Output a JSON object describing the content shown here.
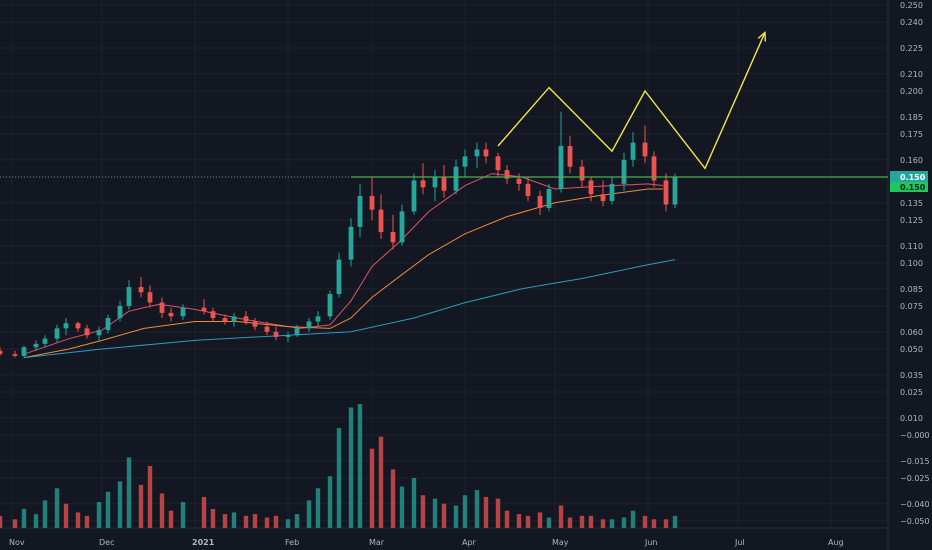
{
  "chart_data": {
    "type": "candlestick",
    "y_axis": {
      "ticks": [
        0.25,
        0.24,
        0.225,
        0.21,
        0.2,
        0.185,
        0.175,
        0.16,
        0.15,
        0.135,
        0.125,
        0.11,
        0.1,
        0.085,
        0.075,
        0.06,
        0.05,
        0.035,
        0.025,
        0.01,
        -0.0,
        -0.015,
        -0.025,
        -0.04,
        -0.05
      ],
      "tick_labels": [
        "0.250",
        "0.240",
        "0.225",
        "0.210",
        "0.200",
        "0.185",
        "0.175",
        "0.160",
        "0.150",
        "0.135",
        "0.125",
        "0.110",
        "0.100",
        "0.085",
        "0.075",
        "0.060",
        "0.050",
        "0.035",
        "0.025",
        "0.010",
        "−0.000",
        "−0.015",
        "−0.025",
        "−0.040",
        "−0.050"
      ]
    },
    "x_axis": {
      "labels": [
        {
          "text": "Nov",
          "date": "2020-11-01",
          "bold": false
        },
        {
          "text": "Dec",
          "date": "2020-12-01",
          "bold": false
        },
        {
          "text": "2021",
          "date": "2021-01-01",
          "bold": true
        },
        {
          "text": "Feb",
          "date": "2021-02-01",
          "bold": false
        },
        {
          "text": "Mar",
          "date": "2021-03-01",
          "bold": false
        },
        {
          "text": "Apr",
          "date": "2021-04-01",
          "bold": false
        },
        {
          "text": "May",
          "date": "2021-05-01",
          "bold": false
        },
        {
          "text": "Jun",
          "date": "2021-06-01",
          "bold": false
        },
        {
          "text": "Jul",
          "date": "2021-07-01",
          "bold": false
        },
        {
          "text": "Aug",
          "date": "2021-08-01",
          "bold": false
        }
      ],
      "range": [
        "2020-10-28",
        "2021-08-20"
      ]
    },
    "last_price": {
      "value": 0.15,
      "label": "0.150",
      "label_secondary": "0.150"
    },
    "support_level": {
      "value": 0.15,
      "from": "2021-02-22",
      "to": "2021-08-20"
    },
    "moving_averages": [
      {
        "color": "#e4516b",
        "points": [
          [
            "2020-11-05",
            0.047
          ],
          [
            "2020-11-20",
            0.056
          ],
          [
            "2020-12-01",
            0.061
          ],
          [
            "2020-12-10",
            0.072
          ],
          [
            "2020-12-20",
            0.076
          ],
          [
            "2021-01-01",
            0.073
          ],
          [
            "2021-01-15",
            0.068
          ],
          [
            "2021-01-25",
            0.065
          ],
          [
            "2021-02-05",
            0.062
          ],
          [
            "2021-02-15",
            0.064
          ],
          [
            "2021-02-22",
            0.078
          ],
          [
            "2021-03-01",
            0.098
          ],
          [
            "2021-03-10",
            0.112
          ],
          [
            "2021-03-20",
            0.13
          ],
          [
            "2021-04-01",
            0.145
          ],
          [
            "2021-04-10",
            0.152
          ],
          [
            "2021-04-20",
            0.15
          ],
          [
            "2021-05-01",
            0.143
          ],
          [
            "2021-05-10",
            0.144
          ],
          [
            "2021-05-20",
            0.145
          ],
          [
            "2021-06-01",
            0.146
          ],
          [
            "2021-06-06",
            0.145
          ]
        ]
      },
      {
        "color": "#f0893a",
        "points": [
          [
            "2020-11-05",
            0.045
          ],
          [
            "2020-11-20",
            0.05
          ],
          [
            "2020-12-01",
            0.055
          ],
          [
            "2020-12-15",
            0.062
          ],
          [
            "2021-01-01",
            0.066
          ],
          [
            "2021-01-15",
            0.066
          ],
          [
            "2021-02-01",
            0.063
          ],
          [
            "2021-02-15",
            0.062
          ],
          [
            "2021-02-22",
            0.068
          ],
          [
            "2021-03-01",
            0.08
          ],
          [
            "2021-03-10",
            0.092
          ],
          [
            "2021-03-20",
            0.105
          ],
          [
            "2021-04-01",
            0.117
          ],
          [
            "2021-04-15",
            0.127
          ],
          [
            "2021-05-01",
            0.135
          ],
          [
            "2021-05-15",
            0.139
          ],
          [
            "2021-06-01",
            0.143
          ],
          [
            "2021-06-06",
            0.143
          ]
        ]
      },
      {
        "color": "#2d9ac2",
        "points": [
          [
            "2020-11-05",
            0.045
          ],
          [
            "2020-12-01",
            0.05
          ],
          [
            "2021-01-01",
            0.055
          ],
          [
            "2021-02-01",
            0.058
          ],
          [
            "2021-02-22",
            0.06
          ],
          [
            "2021-03-15",
            0.068
          ],
          [
            "2021-04-01",
            0.077
          ],
          [
            "2021-04-20",
            0.085
          ],
          [
            "2021-05-10",
            0.091
          ],
          [
            "2021-06-01",
            0.099
          ],
          [
            "2021-06-10",
            0.102
          ]
        ]
      }
    ],
    "candles": [
      [
        "2020-10-28",
        0.049,
        0.051,
        0.046,
        0.047
      ],
      [
        "2020-11-02",
        0.047,
        0.049,
        0.045,
        0.046
      ],
      [
        "2020-11-05",
        0.046,
        0.052,
        0.045,
        0.051
      ],
      [
        "2020-11-09",
        0.051,
        0.055,
        0.049,
        0.053
      ],
      [
        "2020-11-12",
        0.053,
        0.058,
        0.051,
        0.056
      ],
      [
        "2020-11-16",
        0.056,
        0.064,
        0.054,
        0.062
      ],
      [
        "2020-11-19",
        0.062,
        0.068,
        0.058,
        0.065
      ],
      [
        "2020-11-23",
        0.065,
        0.066,
        0.06,
        0.062
      ],
      [
        "2020-11-26",
        0.062,
        0.064,
        0.056,
        0.058
      ],
      [
        "2020-11-30",
        0.058,
        0.063,
        0.055,
        0.061
      ],
      [
        "2020-12-03",
        0.061,
        0.07,
        0.059,
        0.068
      ],
      [
        "2020-12-07",
        0.068,
        0.078,
        0.066,
        0.075
      ],
      [
        "2020-12-10",
        0.075,
        0.09,
        0.073,
        0.086
      ],
      [
        "2020-12-14",
        0.086,
        0.092,
        0.08,
        0.083
      ],
      [
        "2020-12-17",
        0.083,
        0.087,
        0.074,
        0.077
      ],
      [
        "2020-12-21",
        0.077,
        0.08,
        0.068,
        0.071
      ],
      [
        "2020-12-24",
        0.071,
        0.074,
        0.066,
        0.069
      ],
      [
        "2020-12-28",
        0.069,
        0.076,
        0.067,
        0.074
      ],
      [
        "2021-01-04",
        0.074,
        0.079,
        0.07,
        0.072
      ],
      [
        "2021-01-07",
        0.072,
        0.074,
        0.066,
        0.068
      ],
      [
        "2021-01-11",
        0.068,
        0.07,
        0.064,
        0.066
      ],
      [
        "2021-01-14",
        0.066,
        0.071,
        0.063,
        0.069
      ],
      [
        "2021-01-18",
        0.069,
        0.072,
        0.064,
        0.066
      ],
      [
        "2021-01-21",
        0.066,
        0.068,
        0.061,
        0.063
      ],
      [
        "2021-01-25",
        0.063,
        0.066,
        0.058,
        0.06
      ],
      [
        "2021-01-28",
        0.06,
        0.063,
        0.055,
        0.057
      ],
      [
        "2021-02-01",
        0.057,
        0.06,
        0.054,
        0.058
      ],
      [
        "2021-02-04",
        0.058,
        0.064,
        0.057,
        0.062
      ],
      [
        "2021-02-08",
        0.062,
        0.068,
        0.06,
        0.066
      ],
      [
        "2021-02-11",
        0.066,
        0.072,
        0.063,
        0.069
      ],
      [
        "2021-02-15",
        0.069,
        0.084,
        0.067,
        0.082
      ],
      [
        "2021-02-18",
        0.082,
        0.106,
        0.08,
        0.102
      ],
      [
        "2021-02-22",
        0.102,
        0.126,
        0.098,
        0.121
      ],
      [
        "2021-02-25",
        0.121,
        0.146,
        0.115,
        0.139
      ],
      [
        "2021-03-01",
        0.139,
        0.15,
        0.125,
        0.131
      ],
      [
        "2021-03-04",
        0.131,
        0.14,
        0.114,
        0.118
      ],
      [
        "2021-03-08",
        0.118,
        0.128,
        0.108,
        0.112
      ],
      [
        "2021-03-11",
        0.112,
        0.134,
        0.11,
        0.13
      ],
      [
        "2021-03-15",
        0.13,
        0.152,
        0.128,
        0.148
      ],
      [
        "2021-03-18",
        0.148,
        0.158,
        0.14,
        0.144
      ],
      [
        "2021-03-22",
        0.144,
        0.154,
        0.136,
        0.15
      ],
      [
        "2021-03-25",
        0.15,
        0.157,
        0.138,
        0.142
      ],
      [
        "2021-03-29",
        0.142,
        0.16,
        0.14,
        0.156
      ],
      [
        "2021-04-01",
        0.156,
        0.166,
        0.15,
        0.162
      ],
      [
        "2021-04-05",
        0.162,
        0.17,
        0.155,
        0.166
      ],
      [
        "2021-04-08",
        0.166,
        0.17,
        0.158,
        0.162
      ],
      [
        "2021-04-12",
        0.162,
        0.164,
        0.15,
        0.154
      ],
      [
        "2021-04-15",
        0.154,
        0.157,
        0.146,
        0.149
      ],
      [
        "2021-04-19",
        0.149,
        0.152,
        0.142,
        0.146
      ],
      [
        "2021-04-22",
        0.146,
        0.15,
        0.136,
        0.139
      ],
      [
        "2021-04-26",
        0.139,
        0.142,
        0.128,
        0.132
      ],
      [
        "2021-04-29",
        0.132,
        0.146,
        0.13,
        0.143
      ],
      [
        "2021-05-03",
        0.143,
        0.188,
        0.141,
        0.168
      ],
      [
        "2021-05-06",
        0.168,
        0.174,
        0.152,
        0.156
      ],
      [
        "2021-05-10",
        0.156,
        0.16,
        0.144,
        0.148
      ],
      [
        "2021-05-13",
        0.148,
        0.15,
        0.136,
        0.14
      ],
      [
        "2021-05-17",
        0.14,
        0.148,
        0.133,
        0.136
      ],
      [
        "2021-05-20",
        0.136,
        0.15,
        0.134,
        0.146
      ],
      [
        "2021-05-24",
        0.146,
        0.164,
        0.142,
        0.16
      ],
      [
        "2021-05-27",
        0.16,
        0.176,
        0.156,
        0.17
      ],
      [
        "2021-05-31",
        0.17,
        0.18,
        0.158,
        0.162
      ],
      [
        "2021-06-03",
        0.162,
        0.165,
        0.144,
        0.148
      ],
      [
        "2021-06-07",
        0.148,
        0.152,
        0.13,
        0.134
      ],
      [
        "2021-06-10",
        0.134,
        0.152,
        0.132,
        0.15
      ]
    ],
    "volume": {
      "colors": {
        "up": "#26a69a",
        "down": "#ef5350"
      },
      "bars": [
        [
          "2020-10-28",
          -0.047,
          0
        ],
        [
          "2020-11-02",
          -0.049,
          0
        ],
        [
          "2020-11-05",
          -0.043,
          1
        ],
        [
          "2020-11-09",
          -0.046,
          1
        ],
        [
          "2020-11-12",
          -0.038,
          1
        ],
        [
          "2020-11-16",
          -0.031,
          1
        ],
        [
          "2020-11-19",
          -0.04,
          0
        ],
        [
          "2020-11-23",
          -0.045,
          0
        ],
        [
          "2020-11-26",
          -0.047,
          0
        ],
        [
          "2020-11-30",
          -0.039,
          1
        ],
        [
          "2020-12-03",
          -0.033,
          1
        ],
        [
          "2020-12-07",
          -0.027,
          1
        ],
        [
          "2020-12-10",
          -0.013,
          1
        ],
        [
          "2020-12-14",
          -0.029,
          0
        ],
        [
          "2020-12-17",
          -0.018,
          0
        ],
        [
          "2020-12-21",
          -0.034,
          0
        ],
        [
          "2020-12-24",
          -0.044,
          0
        ],
        [
          "2020-12-28",
          -0.039,
          1
        ],
        [
          "2021-01-04",
          -0.036,
          0
        ],
        [
          "2021-01-07",
          -0.043,
          0
        ],
        [
          "2021-01-11",
          -0.046,
          0
        ],
        [
          "2021-01-14",
          -0.045,
          1
        ],
        [
          "2021-01-18",
          -0.047,
          0
        ],
        [
          "2021-01-21",
          -0.046,
          0
        ],
        [
          "2021-01-25",
          -0.048,
          0
        ],
        [
          "2021-01-28",
          -0.047,
          0
        ],
        [
          "2021-02-01",
          -0.049,
          1
        ],
        [
          "2021-02-04",
          -0.046,
          1
        ],
        [
          "2021-02-08",
          -0.038,
          1
        ],
        [
          "2021-02-11",
          -0.031,
          1
        ],
        [
          "2021-02-15",
          -0.024,
          1
        ],
        [
          "2021-02-18",
          0.004,
          1
        ],
        [
          "2021-02-22",
          0.016,
          1
        ],
        [
          "2021-02-25",
          0.018,
          1
        ],
        [
          "2021-03-01",
          -0.008,
          0
        ],
        [
          "2021-03-04",
          -0.001,
          0
        ],
        [
          "2021-03-08",
          -0.02,
          0
        ],
        [
          "2021-03-11",
          -0.03,
          1
        ],
        [
          "2021-03-15",
          -0.025,
          1
        ],
        [
          "2021-03-18",
          -0.035,
          0
        ],
        [
          "2021-03-22",
          -0.037,
          1
        ],
        [
          "2021-03-25",
          -0.04,
          0
        ],
        [
          "2021-03-29",
          -0.041,
          1
        ],
        [
          "2021-04-01",
          -0.035,
          1
        ],
        [
          "2021-04-05",
          -0.032,
          1
        ],
        [
          "2021-04-08",
          -0.036,
          0
        ],
        [
          "2021-04-12",
          -0.037,
          0
        ],
        [
          "2021-04-15",
          -0.044,
          0
        ],
        [
          "2021-04-19",
          -0.046,
          0
        ],
        [
          "2021-04-22",
          -0.047,
          0
        ],
        [
          "2021-04-26",
          -0.045,
          0
        ],
        [
          "2021-04-29",
          -0.048,
          1
        ],
        [
          "2021-05-03",
          -0.041,
          0
        ],
        [
          "2021-05-06",
          -0.048,
          0
        ],
        [
          "2021-05-10",
          -0.047,
          0
        ],
        [
          "2021-05-13",
          -0.047,
          0
        ],
        [
          "2021-05-17",
          -0.049,
          0
        ],
        [
          "2021-05-20",
          -0.049,
          1
        ],
        [
          "2021-05-24",
          -0.048,
          1
        ],
        [
          "2021-05-27",
          -0.044,
          1
        ],
        [
          "2021-05-31",
          -0.047,
          0
        ],
        [
          "2021-06-03",
          -0.049,
          0
        ],
        [
          "2021-06-07",
          -0.049,
          0
        ],
        [
          "2021-06-10",
          -0.047,
          1
        ]
      ]
    },
    "drawing": {
      "color": "#f5e642",
      "points": [
        [
          "2021-04-12",
          0.168
        ],
        [
          "2021-04-29",
          0.202
        ],
        [
          "2021-05-20",
          0.165
        ],
        [
          "2021-05-31",
          0.2
        ],
        [
          "2021-06-20",
          0.155
        ],
        [
          "2021-07-10",
          0.234
        ]
      ],
      "arrow_end": true
    }
  }
}
